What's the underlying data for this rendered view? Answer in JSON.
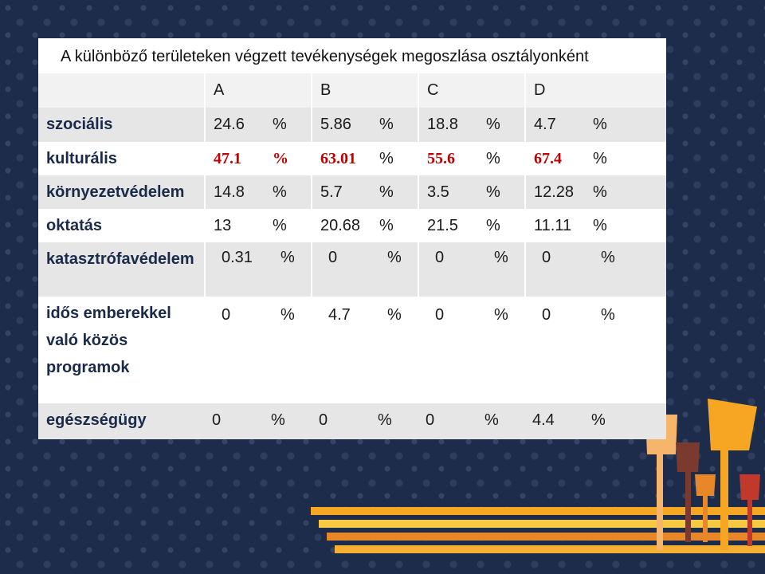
{
  "table": {
    "title": "A különböző területeken végzett tevékenységek megoszlása osztályonként",
    "header": [
      "A",
      "B",
      "C",
      "D"
    ],
    "rows": [
      {
        "label": "szociális",
        "cells": [
          [
            "24.6",
            "%"
          ],
          [
            "5.86",
            "%"
          ],
          [
            "18.8",
            "%"
          ],
          [
            "4.7",
            "%"
          ]
        ]
      },
      {
        "label": "kulturális",
        "cells": [
          [
            "47.1",
            "%"
          ],
          [
            "63.01",
            "%"
          ],
          [
            "55.6",
            "%"
          ],
          [
            "67.4",
            "%"
          ]
        ]
      },
      {
        "label": "környezetvédelem",
        "cells": [
          [
            "14.8",
            "%"
          ],
          [
            "5.7",
            "%"
          ],
          [
            "3.5",
            "%"
          ],
          [
            "12.28",
            "%"
          ]
        ]
      },
      {
        "label": "oktatás",
        "cells": [
          [
            "13",
            "%"
          ],
          [
            "20.68",
            "%"
          ],
          [
            "21.5",
            "%"
          ],
          [
            "11.11",
            "%"
          ]
        ]
      },
      {
        "label": "katasztrófavédelem",
        "cells": [
          [
            "0.31",
            "%"
          ],
          [
            "0",
            "%"
          ],
          [
            "0",
            "%"
          ],
          [
            "0",
            "%"
          ]
        ]
      },
      {
        "label": "idős emberekkel való közös programok",
        "cells": [
          [
            "0",
            "%"
          ],
          [
            "4.7",
            "%"
          ],
          [
            "0",
            "%"
          ],
          [
            "0",
            "%"
          ]
        ]
      },
      {
        "label": "egészségügy",
        "cells": [
          [
            "0",
            "%"
          ],
          [
            "0",
            "%"
          ],
          [
            "0",
            "%"
          ],
          [
            "4.4",
            "%"
          ]
        ]
      }
    ]
  }
}
